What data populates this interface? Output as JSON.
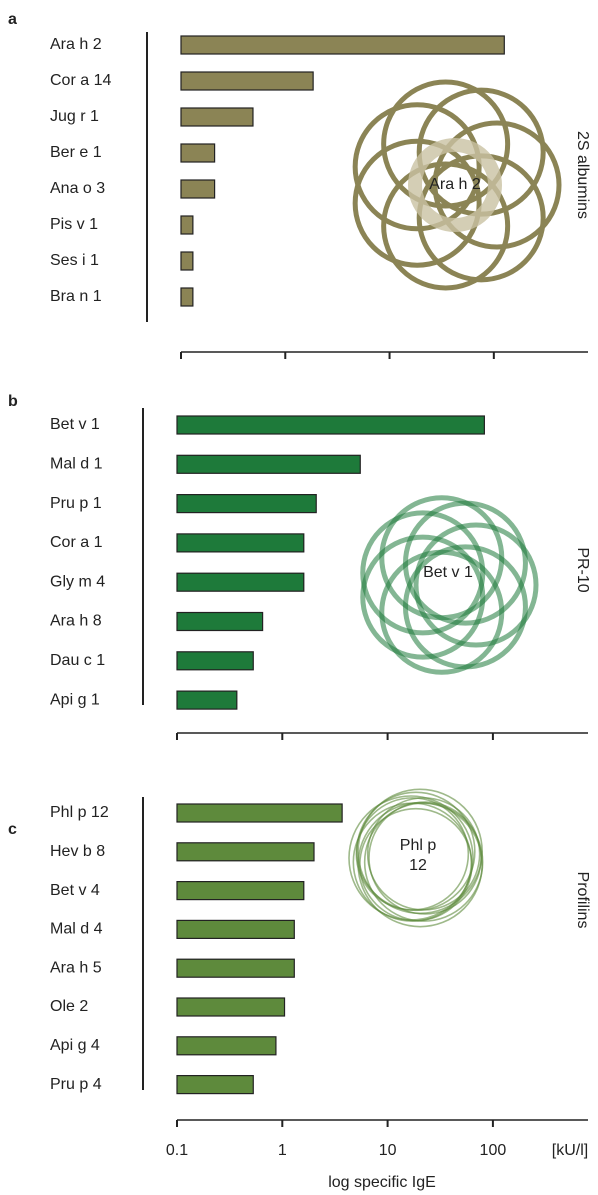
{
  "chart_data": [
    {
      "type": "bar",
      "orientation": "horizontal",
      "panel": "a",
      "side_label": "2S albumins",
      "center_label": "Ara h 2",
      "categories": [
        "Ara h 2",
        "Cor a 14",
        "Jug r 1",
        "Ber e 1",
        "Ana o 3",
        "Pis v 1",
        "Ses i 1",
        "Bra n 1"
      ],
      "values": [
        126,
        1.85,
        0.49,
        0.21,
        0.21,
        0.13,
        0.13,
        0.13
      ],
      "color": "#8b8455",
      "xscale": "log",
      "xlim": [
        0.1,
        800
      ],
      "xticks": [
        0.1,
        1,
        10,
        100
      ],
      "tick_labels": false
    },
    {
      "type": "bar",
      "orientation": "horizontal",
      "panel": "b",
      "side_label": "PR-10",
      "center_label": "Bet v 1",
      "categories": [
        "Bet v 1",
        "Mal d 1",
        "Pru p 1",
        "Cor a 1",
        "Gly m 4",
        "Ara h 8",
        "Dau c 1",
        "Api g 1"
      ],
      "values": [
        83,
        5.5,
        2.1,
        1.6,
        1.6,
        0.65,
        0.53,
        0.37
      ],
      "color": "#1e7a3a",
      "xscale": "log",
      "xlim": [
        0.1,
        800
      ],
      "xticks": [
        0.1,
        1,
        10,
        100
      ],
      "tick_labels": false
    },
    {
      "type": "bar",
      "orientation": "horizontal",
      "panel": "c",
      "side_label": "Profilins",
      "center_label": "Phl p 12",
      "categories": [
        "Phl p 12",
        "Hev b 8",
        "Bet v 4",
        "Mal d 4",
        "Ara h 5",
        "Ole 2",
        "Api g 4",
        "Pru p 4"
      ],
      "values": [
        3.7,
        2.0,
        1.6,
        1.3,
        1.3,
        1.05,
        0.87,
        0.53
      ],
      "color": "#5e8a3c",
      "xscale": "log",
      "xlim": [
        0.1,
        800
      ],
      "xticks": [
        0.1,
        1,
        10,
        100
      ],
      "tick_labels": true,
      "xlabel": "log specific IgE",
      "x_unit": "[kU/l]"
    }
  ]
}
